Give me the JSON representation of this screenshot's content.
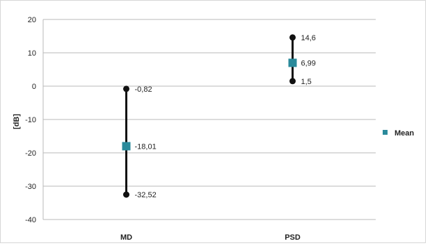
{
  "chart_data": {
    "type": "error-bar",
    "title": "",
    "ylabel": "[dB]",
    "xlabel": "",
    "ylim": [
      -40,
      20
    ],
    "yticks": [
      -40,
      -30,
      -20,
      -10,
      0,
      10,
      20
    ],
    "ytick_labels": [
      "-40",
      "-30",
      "-20",
      "-10",
      "0",
      "10",
      "20"
    ],
    "grid": "horizontal",
    "legend_position": "right",
    "categories": [
      "MD",
      "PSD"
    ],
    "series": [
      {
        "name": "Mean",
        "color": "#2a8a9b",
        "values": [
          -18.01,
          6.99
        ],
        "min": [
          -32.52,
          1.5
        ],
        "max": [
          -0.82,
          14.6
        ],
        "value_labels": [
          "-18,01",
          "6,99"
        ],
        "min_labels": [
          "-32,52",
          "1,5"
        ],
        "max_labels": [
          "-0,82",
          "14,6"
        ]
      }
    ],
    "marker_color": "#111111",
    "gridline_color": "#b9b9b9"
  }
}
